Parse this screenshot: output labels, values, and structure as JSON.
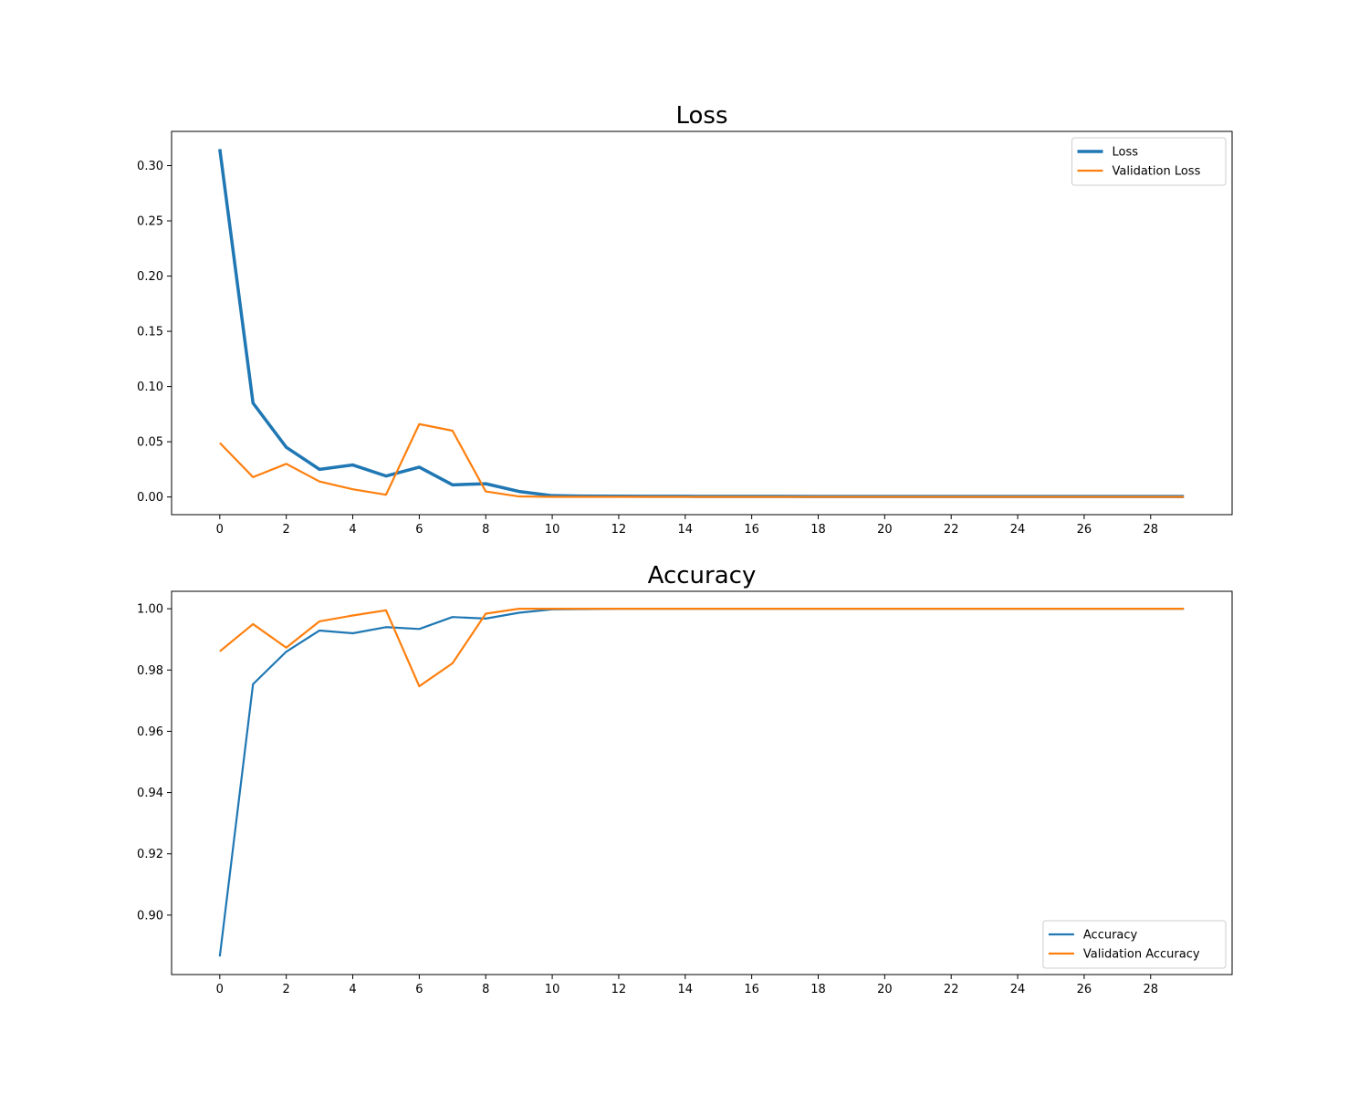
{
  "chart_data": [
    {
      "type": "line",
      "title": "Loss",
      "xlabel": "",
      "ylabel": "",
      "x": [
        0,
        1,
        2,
        3,
        4,
        5,
        6,
        7,
        8,
        9,
        10,
        11,
        12,
        13,
        14,
        15,
        16,
        17,
        18,
        19,
        20,
        21,
        22,
        23,
        24,
        25,
        26,
        27,
        28,
        29
      ],
      "xticks": [
        0,
        2,
        4,
        6,
        8,
        10,
        12,
        14,
        16,
        18,
        20,
        22,
        24,
        26,
        28
      ],
      "yticks": [
        0.0,
        0.05,
        0.1,
        0.15,
        0.2,
        0.25,
        0.3
      ],
      "ytick_labels": [
        "0.00",
        "0.05",
        "0.10",
        "0.15",
        "0.20",
        "0.25",
        "0.30"
      ],
      "xlim": [
        -1.45,
        30.45
      ],
      "ylim": [
        -0.016,
        0.331
      ],
      "grid": false,
      "legend_position": "upper right",
      "series": [
        {
          "name": "Loss",
          "color": "#1f77b4",
          "line_width": "thick",
          "values": [
            0.315,
            0.085,
            0.045,
            0.025,
            0.029,
            0.019,
            0.027,
            0.011,
            0.012,
            0.005,
            0.0012,
            0.0008,
            0.0007,
            0.0006,
            0.0006,
            0.0005,
            0.0005,
            0.0005,
            0.0004,
            0.0004,
            0.0004,
            0.0004,
            0.0004,
            0.0004,
            0.0004,
            0.0004,
            0.0004,
            0.0004,
            0.0004,
            0.0004
          ]
        },
        {
          "name": "Validation Loss",
          "color": "#ff7f0e",
          "line_width": "normal",
          "values": [
            0.049,
            0.018,
            0.03,
            0.014,
            0.007,
            0.002,
            0.066,
            0.06,
            0.005,
            0.0005,
            0.0001,
            0.0001,
            0.0001,
            0.0001,
            0.0001,
            0.0001,
            0.0001,
            0.0001,
            0.0001,
            0.0001,
            0.0001,
            0.0001,
            0.0001,
            0.0001,
            0.0001,
            0.0001,
            0.0001,
            0.0001,
            0.0001,
            0.0001
          ]
        }
      ]
    },
    {
      "type": "line",
      "title": "Accuracy",
      "xlabel": "",
      "ylabel": "",
      "x": [
        0,
        1,
        2,
        3,
        4,
        5,
        6,
        7,
        8,
        9,
        10,
        11,
        12,
        13,
        14,
        15,
        16,
        17,
        18,
        19,
        20,
        21,
        22,
        23,
        24,
        25,
        26,
        27,
        28,
        29
      ],
      "xticks": [
        0,
        2,
        4,
        6,
        8,
        10,
        12,
        14,
        16,
        18,
        20,
        22,
        24,
        26,
        28
      ],
      "yticks": [
        0.9,
        0.92,
        0.94,
        0.96,
        0.98,
        1.0
      ],
      "ytick_labels": [
        "0.90",
        "0.92",
        "0.94",
        "0.96",
        "0.98",
        "1.00"
      ],
      "xlim": [
        -1.45,
        30.45
      ],
      "ylim": [
        0.8806,
        1.0057
      ],
      "grid": false,
      "legend_position": "lower right",
      "series": [
        {
          "name": "Accuracy",
          "color": "#1f77b4",
          "line_width": "normal",
          "values": [
            0.8865,
            0.9754,
            0.986,
            0.9929,
            0.992,
            0.994,
            0.9934,
            0.9973,
            0.9968,
            0.9987,
            0.9998,
            0.9999,
            1.0,
            1.0,
            1.0,
            1.0,
            1.0,
            1.0,
            1.0,
            1.0,
            1.0,
            1.0,
            1.0,
            1.0,
            1.0,
            1.0,
            1.0,
            1.0,
            1.0,
            1.0
          ]
        },
        {
          "name": "Validation Accuracy",
          "color": "#ff7f0e",
          "line_width": "normal",
          "values": [
            0.9861,
            0.995,
            0.9873,
            0.9959,
            0.9978,
            0.9995,
            0.9747,
            0.9822,
            0.9984,
            1.0,
            1.0,
            1.0,
            1.0,
            1.0,
            1.0,
            1.0,
            1.0,
            1.0,
            1.0,
            1.0,
            1.0,
            1.0,
            1.0,
            1.0,
            1.0,
            1.0,
            1.0,
            1.0,
            1.0,
            1.0
          ]
        }
      ]
    }
  ]
}
